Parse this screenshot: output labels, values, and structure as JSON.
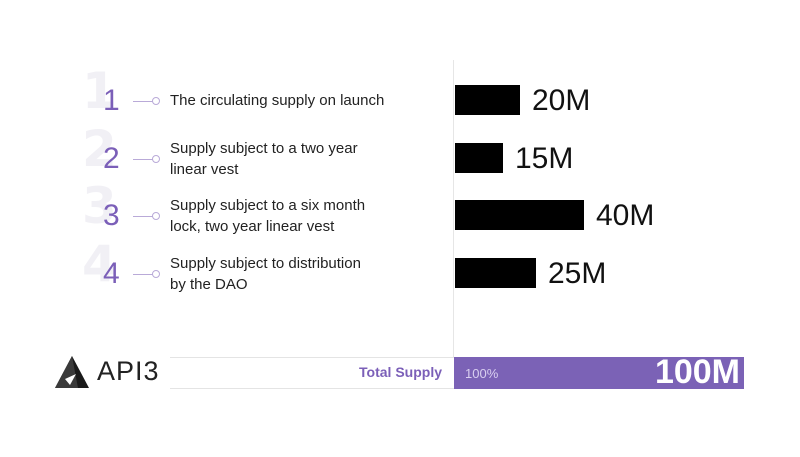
{
  "chart_data": {
    "type": "bar",
    "orientation": "horizontal",
    "categories": [
      "The circulating supply on launch",
      "Supply subject to a two year linear vest",
      "Supply subject to a six month lock, two year linear vest",
      "Supply subject to distribution by the DAO"
    ],
    "values": [
      20,
      15,
      40,
      25
    ],
    "value_labels": [
      "20M",
      "15M",
      "40M",
      "25M"
    ],
    "item_numbers": [
      "1",
      "2",
      "3",
      "4"
    ],
    "xlim": [
      0,
      100
    ],
    "grid": false,
    "legend": "none"
  },
  "rows": [
    {
      "num": "1",
      "desc_lines": [
        "The circulating supply on launch"
      ],
      "value_label": "20M"
    },
    {
      "num": "2",
      "desc_lines": [
        "Supply subject to a two year",
        "linear vest"
      ],
      "value_label": "15M"
    },
    {
      "num": "3",
      "desc_lines": [
        "Supply subject to a six month",
        "lock, two year linear vest"
      ],
      "value_label": "40M"
    },
    {
      "num": "4",
      "desc_lines": [
        "Supply subject to distribution",
        "by the DAO"
      ],
      "value_label": "25M"
    }
  ],
  "total": {
    "label": "Total Supply",
    "percent": "100%",
    "value": "100M"
  },
  "brand": {
    "name": "API3",
    "logo_icon": "api3-triangle-logo-icon"
  },
  "colors": {
    "accent": "#7b62b6",
    "number": "#7b5fb8",
    "bar": "#000000",
    "text": "#222222"
  }
}
